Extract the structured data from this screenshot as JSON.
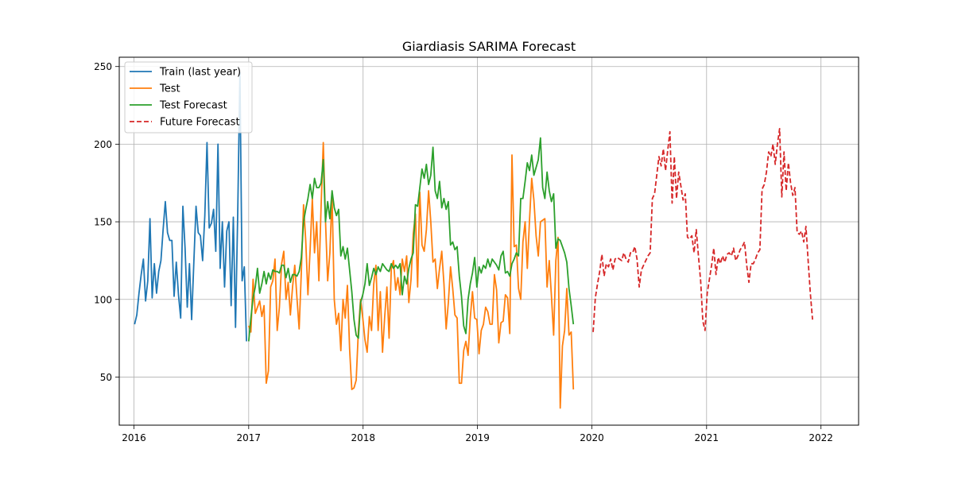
{
  "chart_data": {
    "type": "line",
    "title": "Giardiasis SARIMA Forecast",
    "xlabel": "",
    "ylabel": "",
    "grid": true,
    "legend_position": "top-left",
    "xlim": [
      "2015-11-15",
      "2022-05-01"
    ],
    "ylim": [
      19,
      256
    ],
    "x_ticks": [
      {
        "date": "2016-01-01",
        "label": "2016"
      },
      {
        "date": "2017-01-01",
        "label": "2017"
      },
      {
        "date": "2018-01-01",
        "label": "2018"
      },
      {
        "date": "2019-01-01",
        "label": "2019"
      },
      {
        "date": "2020-01-01",
        "label": "2020"
      },
      {
        "date": "2021-01-01",
        "label": "2021"
      },
      {
        "date": "2022-01-01",
        "label": "2022"
      }
    ],
    "y_ticks": [
      50,
      100,
      150,
      200,
      250
    ],
    "series": [
      {
        "name": "Train (last year)",
        "color": "#1f77b4",
        "dash": "solid",
        "start": "2016-01-03",
        "step_days": 7,
        "values": [
          84,
          90,
          104,
          116,
          126,
          99,
          112,
          152,
          101,
          123,
          104,
          118,
          125,
          145,
          163,
          143,
          138,
          138,
          102,
          124,
          103,
          88,
          160,
          133,
          95,
          123,
          87,
          124,
          160,
          143,
          141,
          125,
          154,
          201,
          146,
          149,
          158,
          131,
          200,
          120,
          150,
          108,
          144,
          150,
          96,
          153,
          82,
          155,
          246,
          112,
          121,
          73
        ]
      },
      {
        "name": "Test",
        "color": "#ff7f0e",
        "dash": "solid",
        "start": "2017-01-01",
        "step_days": 7,
        "values": [
          83,
          79,
          113,
          91,
          95,
          99,
          89,
          96,
          46,
          54,
          108,
          112,
          126,
          80,
          95,
          123,
          131,
          100,
          111,
          90,
          108,
          122,
          101,
          81,
          118,
          161,
          138,
          103,
          132,
          165,
          130,
          150,
          112,
          160,
          201,
          151,
          112,
          130,
          167,
          100,
          84,
          91,
          67,
          100,
          88,
          109,
          68,
          42,
          43,
          48,
          80,
          100,
          88,
          74,
          66,
          89,
          80,
          110,
          122,
          80,
          105,
          66,
          89,
          108,
          75,
          120,
          125,
          106,
          114,
          103,
          126,
          118,
          128,
          98,
          113,
          142,
          155,
          108,
          169,
          135,
          131,
          145,
          170,
          150,
          124,
          126,
          107,
          120,
          131,
          110,
          81,
          98,
          121,
          107,
          90,
          88,
          46,
          46,
          67,
          73,
          64,
          88,
          105,
          88,
          87,
          65,
          80,
          84,
          95,
          92,
          84,
          84,
          116,
          106,
          72,
          85,
          86,
          103,
          101,
          78,
          193,
          134,
          135,
          107,
          100,
          137,
          150,
          120,
          151,
          178,
          164,
          141,
          128,
          150,
          151,
          152,
          108,
          125,
          102,
          77,
          125,
          140,
          30,
          70,
          80,
          107,
          77,
          79,
          42
        ]
      },
      {
        "name": "Test Forecast",
        "color": "#2ca02c",
        "dash": "solid",
        "start": "2017-01-01",
        "step_days": 7,
        "values": [
          73,
          88,
          101,
          108,
          120,
          104,
          110,
          118,
          110,
          117,
          113,
          119,
          118,
          118,
          117,
          122,
          122,
          114,
          120,
          111,
          116,
          116,
          115,
          118,
          127,
          150,
          158,
          165,
          174,
          165,
          178,
          172,
          172,
          175,
          190,
          150,
          163,
          152,
          170,
          159,
          154,
          158,
          128,
          134,
          126,
          133,
          119,
          105,
          87,
          77,
          75,
          98,
          103,
          110,
          123,
          109,
          114,
          120,
          116,
          121,
          118,
          123,
          121,
          119,
          118,
          123,
          120,
          122,
          120,
          123,
          103,
          115,
          110,
          120,
          126,
          130,
          161,
          160,
          172,
          184,
          178,
          187,
          174,
          180,
          198,
          170,
          165,
          176,
          159,
          165,
          158,
          163,
          135,
          137,
          132,
          134,
          115,
          102,
          83,
          78,
          100,
          110,
          117,
          127,
          108,
          121,
          117,
          122,
          120,
          126,
          121,
          126,
          124,
          122,
          119,
          128,
          131,
          117,
          118,
          115,
          123,
          126,
          130,
          128,
          165,
          165,
          176,
          188,
          183,
          193,
          180,
          185,
          190,
          204,
          172,
          165,
          182,
          170,
          163,
          168,
          133,
          139,
          138,
          134,
          130,
          124,
          107,
          96,
          84
        ]
      },
      {
        "name": "Future Forecast",
        "color": "#d62728",
        "dash": "dashed",
        "start": "2020-01-05",
        "step_days": 7,
        "values": [
          79,
          101,
          110,
          118,
          129,
          115,
          123,
          121,
          126,
          119,
          126,
          127,
          126,
          125,
          130,
          126,
          124,
          130,
          130,
          134,
          126,
          108,
          119,
          122,
          125,
          128,
          130,
          165,
          168,
          180,
          192,
          186,
          197,
          183,
          196,
          208,
          162,
          192,
          165,
          182,
          173,
          164,
          168,
          140,
          139,
          141,
          130,
          145,
          128,
          112,
          86,
          80,
          104,
          113,
          122,
          133,
          116,
          127,
          123,
          128,
          124,
          129,
          130,
          128,
          133,
          125,
          128,
          132,
          134,
          137,
          122,
          111,
          123,
          123,
          126,
          130,
          132,
          171,
          174,
          182,
          195,
          192,
          200,
          187,
          200,
          210,
          166,
          195,
          170,
          188,
          175,
          167,
          172,
          143,
          142,
          144,
          137,
          147,
          125,
          104,
          87
        ]
      }
    ]
  }
}
